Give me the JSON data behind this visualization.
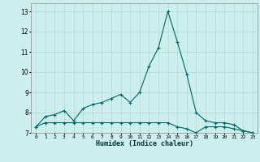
{
  "x": [
    0,
    1,
    2,
    3,
    4,
    5,
    6,
    7,
    8,
    9,
    10,
    11,
    12,
    13,
    14,
    15,
    16,
    17,
    18,
    19,
    20,
    21,
    22,
    23
  ],
  "upper_line": [
    7.3,
    7.8,
    7.9,
    8.1,
    7.6,
    8.2,
    8.4,
    8.5,
    8.7,
    8.9,
    8.5,
    9.0,
    10.3,
    11.2,
    13.0,
    11.5,
    9.9,
    8.0,
    7.6,
    7.5,
    7.5,
    7.4,
    7.1,
    7.0
  ],
  "lower_line": [
    7.3,
    7.5,
    7.5,
    7.5,
    7.5,
    7.5,
    7.5,
    7.5,
    7.5,
    7.5,
    7.5,
    7.5,
    7.5,
    7.5,
    7.5,
    7.3,
    7.2,
    7.0,
    7.3,
    7.3,
    7.3,
    7.2,
    7.1,
    7.0
  ],
  "line_color": "#006666",
  "bg_color": "#cceeed",
  "grid_color": "#b0d8d8",
  "xlabel": "Humidex (Indice chaleur)",
  "ylim": [
    7,
    13.4
  ],
  "yticks": [
    7,
    8,
    9,
    10,
    11,
    12,
    13
  ],
  "xtick_labels": [
    "0",
    "1",
    "2",
    "3",
    "4",
    "5",
    "6",
    "7",
    "8",
    "9",
    "10",
    "11",
    "12",
    "13",
    "14",
    "15",
    "16",
    "17",
    "18",
    "19",
    "20",
    "21",
    "22",
    "23"
  ]
}
